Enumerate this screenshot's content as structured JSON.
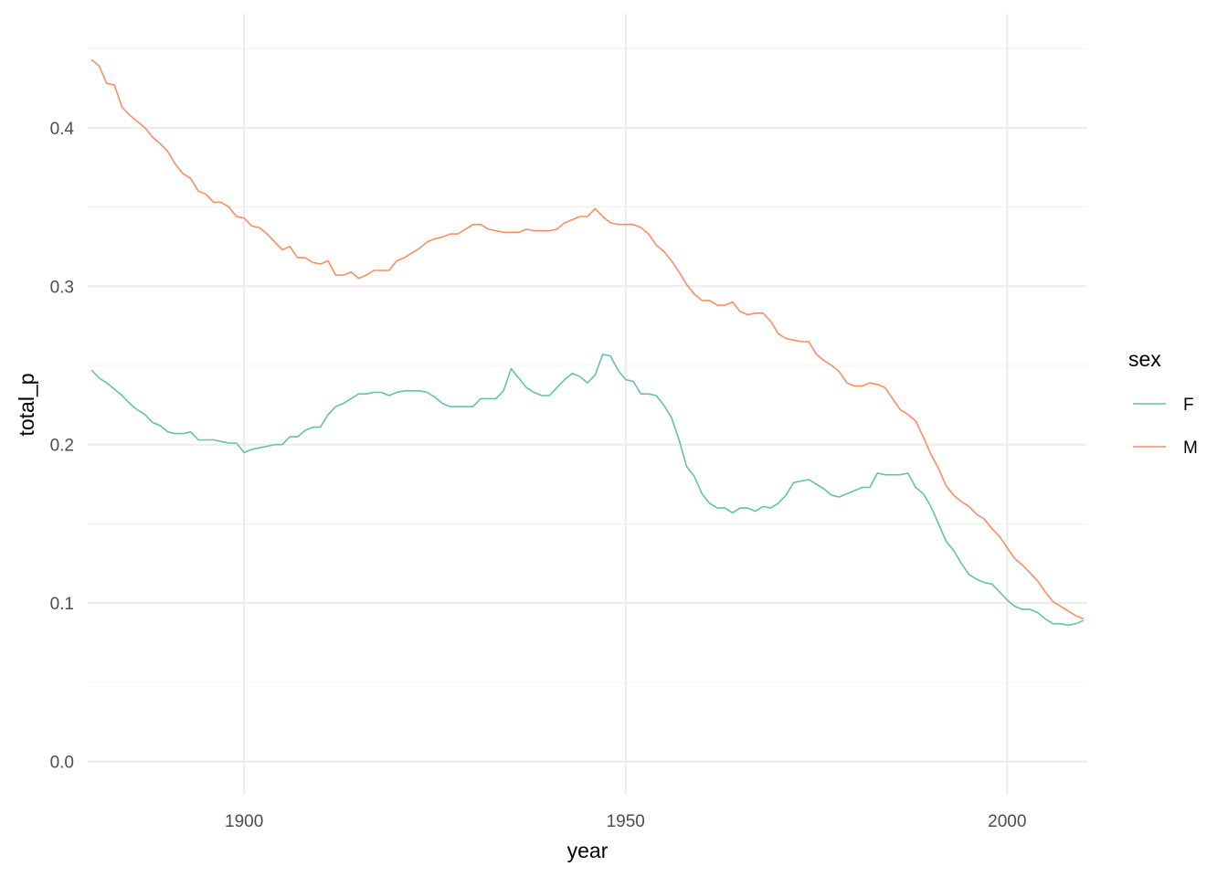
{
  "chart_data": {
    "type": "line",
    "title": "",
    "xlabel": "year",
    "ylabel": "total_p",
    "xlim": [
      1879.5,
      2010.5
    ],
    "ylim": [
      -0.021,
      0.472
    ],
    "x_ticks": [
      1900,
      1950,
      2000
    ],
    "x_tick_labels": [
      "1900",
      "1950",
      "2000"
    ],
    "y_ticks": [
      0.0,
      0.1,
      0.2,
      0.3,
      0.4
    ],
    "y_tick_labels": [
      "0.0",
      "0.1",
      "0.2",
      "0.3",
      "0.4"
    ],
    "grid": true,
    "legend": {
      "title": "sex",
      "placement": "right"
    },
    "x_start": 1880,
    "series": [
      {
        "name": "F",
        "color": "#66C2A5",
        "values": [
          0.247,
          0.242,
          0.239,
          0.235,
          0.231,
          0.226,
          0.222,
          0.219,
          0.214,
          0.212,
          0.208,
          0.207,
          0.207,
          0.208,
          0.203,
          0.203,
          0.203,
          0.202,
          0.201,
          0.201,
          0.195,
          0.197,
          0.198,
          0.199,
          0.2,
          0.2,
          0.205,
          0.205,
          0.209,
          0.211,
          0.211,
          0.219,
          0.224,
          0.226,
          0.229,
          0.232,
          0.232,
          0.233,
          0.233,
          0.231,
          0.233,
          0.234,
          0.234,
          0.234,
          0.233,
          0.23,
          0.226,
          0.224,
          0.224,
          0.224,
          0.224,
          0.229,
          0.229,
          0.229,
          0.234,
          0.248,
          0.242,
          0.236,
          0.233,
          0.231,
          0.231,
          0.236,
          0.241,
          0.245,
          0.243,
          0.239,
          0.244,
          0.257,
          0.256,
          0.247,
          0.241,
          0.24,
          0.232,
          0.232,
          0.231,
          0.225,
          0.217,
          0.203,
          0.186,
          0.18,
          0.169,
          0.163,
          0.16,
          0.16,
          0.157,
          0.16,
          0.16,
          0.158,
          0.161,
          0.16,
          0.163,
          0.168,
          0.176,
          0.177,
          0.178,
          0.175,
          0.172,
          0.168,
          0.167,
          0.169,
          0.171,
          0.173,
          0.173,
          0.182,
          0.181,
          0.181,
          0.181,
          0.182,
          0.173,
          0.169,
          0.161,
          0.15,
          0.139,
          0.133,
          0.125,
          0.118,
          0.115,
          0.113,
          0.112,
          0.107,
          0.102,
          0.098,
          0.096,
          0.096,
          0.094,
          0.09,
          0.087,
          0.087,
          0.086,
          0.087,
          0.089
        ]
      },
      {
        "name": "M",
        "color": "#FC8D62",
        "values": [
          0.443,
          0.439,
          0.428,
          0.427,
          0.413,
          0.408,
          0.404,
          0.4,
          0.394,
          0.39,
          0.385,
          0.377,
          0.371,
          0.368,
          0.36,
          0.358,
          0.353,
          0.353,
          0.35,
          0.344,
          0.343,
          0.338,
          0.337,
          0.333,
          0.328,
          0.323,
          0.325,
          0.318,
          0.318,
          0.315,
          0.314,
          0.316,
          0.307,
          0.307,
          0.309,
          0.305,
          0.307,
          0.31,
          0.31,
          0.31,
          0.316,
          0.318,
          0.321,
          0.324,
          0.328,
          0.33,
          0.331,
          0.333,
          0.333,
          0.336,
          0.339,
          0.339,
          0.336,
          0.335,
          0.334,
          0.334,
          0.334,
          0.336,
          0.335,
          0.335,
          0.335,
          0.336,
          0.34,
          0.342,
          0.344,
          0.344,
          0.349,
          0.344,
          0.34,
          0.339,
          0.339,
          0.339,
          0.337,
          0.333,
          0.326,
          0.322,
          0.316,
          0.309,
          0.301,
          0.295,
          0.291,
          0.291,
          0.288,
          0.288,
          0.29,
          0.284,
          0.282,
          0.283,
          0.283,
          0.278,
          0.27,
          0.267,
          0.266,
          0.265,
          0.265,
          0.257,
          0.253,
          0.25,
          0.246,
          0.239,
          0.237,
          0.237,
          0.239,
          0.238,
          0.236,
          0.229,
          0.222,
          0.219,
          0.215,
          0.205,
          0.194,
          0.185,
          0.174,
          0.168,
          0.164,
          0.161,
          0.156,
          0.153,
          0.147,
          0.142,
          0.135,
          0.128,
          0.124,
          0.119,
          0.114,
          0.107,
          0.101,
          0.098,
          0.095,
          0.092,
          0.09
        ]
      }
    ]
  }
}
